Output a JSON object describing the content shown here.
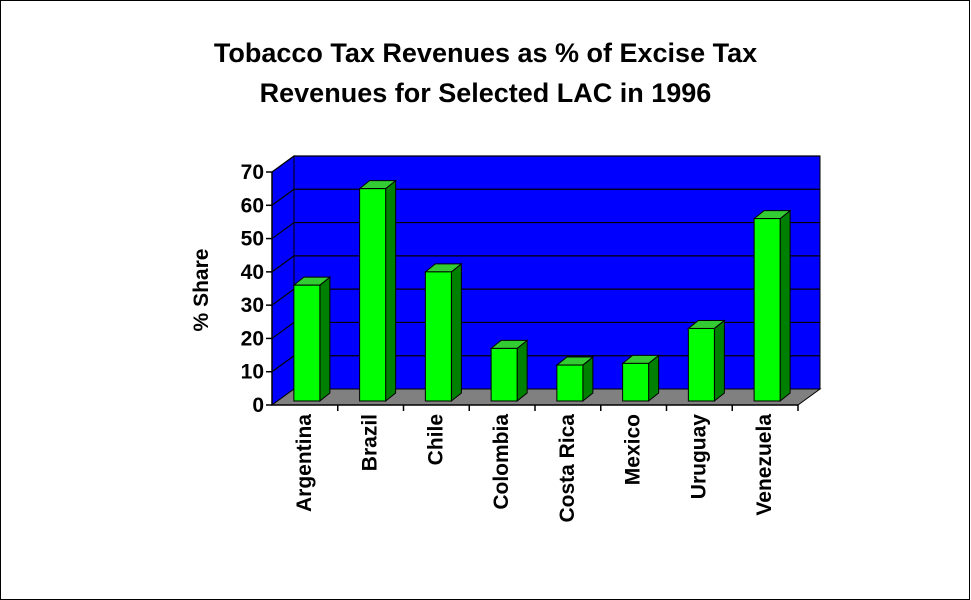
{
  "chart_data": {
    "type": "bar",
    "title_line1": "Tobacco Tax Revenues as % of Excise Tax",
    "title_line2": "Revenues for Selected LAC in 1996",
    "ylabel": "% Share",
    "xlabel": "",
    "ylim": [
      0,
      70
    ],
    "yticks": [
      "0",
      "10",
      "20",
      "30",
      "40",
      "50",
      "60",
      "70"
    ],
    "categories": [
      "Argentina",
      "Brazil",
      "Chile",
      "Colombia",
      "Costa Rica",
      "Mexico",
      "Uruguay",
      "Venezuela"
    ],
    "values": [
      36,
      65,
      40,
      17,
      12,
      12.5,
      23,
      56
    ],
    "grid": true,
    "colors": {
      "bar_front": "#00ff00",
      "bar_top": "#33cc33",
      "bar_side": "#008000",
      "wall": "#0000ff",
      "floor": "#808080"
    }
  }
}
